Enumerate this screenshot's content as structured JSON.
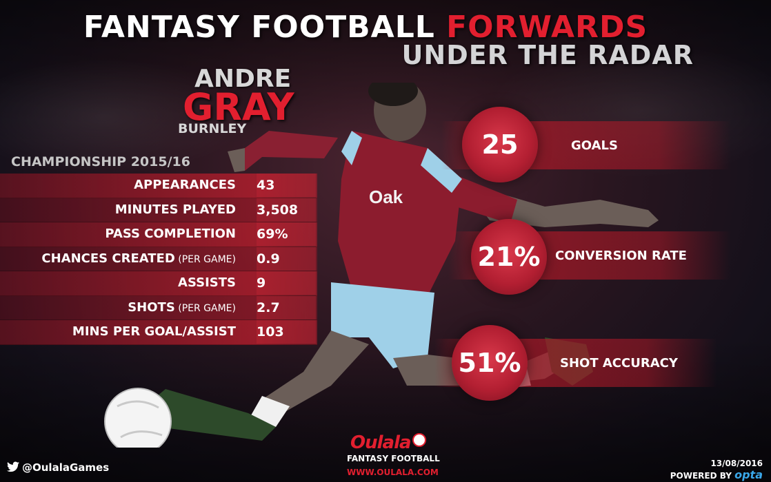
{
  "title": {
    "part1": "FANTASY FOOTBALL ",
    "part2": "FORWARDS",
    "subtitle": "UNDER THE RADAR"
  },
  "player": {
    "first_name": "ANDRE",
    "last_name": "GRAY",
    "club": "BURNLEY"
  },
  "season": "CHAMPIONSHIP 2015/16",
  "stats": [
    {
      "label": "APPEARANCES",
      "note": "",
      "value": "43"
    },
    {
      "label": "MINUTES PLAYED",
      "note": "",
      "value": "3,508"
    },
    {
      "label": "PASS COMPLETION",
      "note": "",
      "value": "69%"
    },
    {
      "label": "CHANCES CREATED",
      "note": " (PER GAME)",
      "value": "0.9"
    },
    {
      "label": "ASSISTS",
      "note": "",
      "value": "9"
    },
    {
      "label": "SHOTS",
      "note": " (PER GAME)",
      "value": "2.7"
    },
    {
      "label": "MINS PER GOAL/ASSIST",
      "note": "",
      "value": "103"
    }
  ],
  "kpis": [
    {
      "value": "25",
      "label": "GOALS"
    },
    {
      "value": "21%",
      "label": "CONVERSION RATE"
    },
    {
      "value": "51%",
      "label": "SHOT ACCURACY"
    }
  ],
  "shirt_sponsor": "Oak",
  "footer": {
    "handle": "@OulalaGames",
    "logo": "Oulala",
    "logo_sub": "FANTASY FOOTBALL",
    "url": "WWW.OULALA.COM",
    "date": "13/08/2016",
    "powered_by": "POWERED BY ",
    "provider": "opta"
  },
  "colors": {
    "accent_red": "#e21f2f",
    "kit_claret": "#8c1c2e",
    "kit_blue": "#9fd0e8",
    "opta_blue": "#3aa7e8"
  }
}
